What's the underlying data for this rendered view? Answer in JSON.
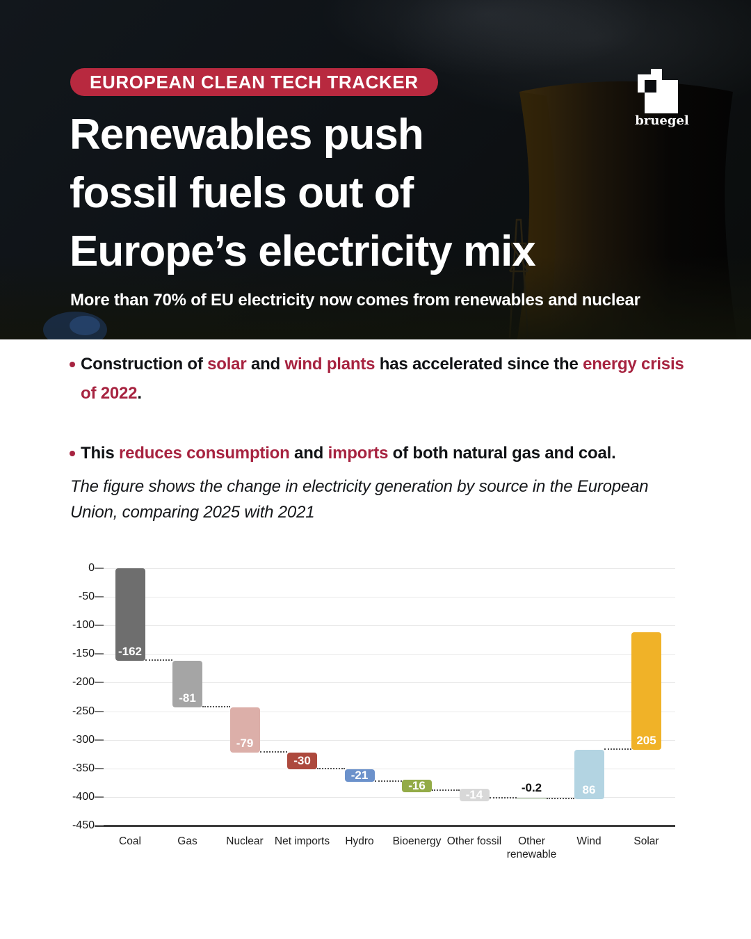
{
  "header": {
    "badge": "EUROPEAN CLEAN TECH TRACKER",
    "badge_color": "#b8293f",
    "title_lines": [
      "Renewables push",
      "fossil fuels out of",
      "Europe’s electricity mix"
    ],
    "subtitle": "More than 70% of EU electricity now comes from renewables and nuclear",
    "logo_text": "bruegel"
  },
  "colors": {
    "accent_red": "#a72340",
    "ink": "#111316"
  },
  "bullets": [
    {
      "segments": [
        {
          "t": "Construction of ",
          "c": "ink"
        },
        {
          "t": "solar",
          "c": "accent"
        },
        {
          "t": " and ",
          "c": "ink"
        },
        {
          "t": "wind plants",
          "c": "accent"
        },
        {
          "t": " has accelerated since the ",
          "c": "ink"
        },
        {
          "t": "energy crisis of 2022",
          "c": "accent"
        },
        {
          "t": ".",
          "c": "ink"
        }
      ]
    },
    {
      "segments": [
        {
          "t": "This ",
          "c": "ink"
        },
        {
          "t": "reduces consumption",
          "c": "accent"
        },
        {
          "t": " and ",
          "c": "ink"
        },
        {
          "t": "imports",
          "c": "accent"
        },
        {
          "t": " of both natural gas and coal.",
          "c": "ink"
        }
      ]
    }
  ],
  "figure_note": "The figure shows the change in electricity generation by source in the European Union, comparing 2025 with 2021",
  "chart_data": {
    "type": "bar",
    "subtype": "waterfall",
    "title": "Change in electricity generation by source, EU, 2025 vs 2021",
    "categories": [
      "Coal",
      "Gas",
      "Nuclear",
      "Net imports",
      "Hydro",
      "Bioenergy",
      "Other fossil",
      "Other renewable",
      "Wind",
      "Solar"
    ],
    "values": [
      -162,
      -81,
      -79,
      -30,
      -21,
      -16,
      -14,
      -0.2,
      86,
      205
    ],
    "labels": [
      "-162",
      "-81",
      "-79",
      "-30",
      "-21",
      "-16",
      "-14",
      "-0.2",
      "86",
      "205"
    ],
    "bar_colors": [
      "#6e6e6e",
      "#a5a5a5",
      "#dcafa9",
      "#ad493d",
      "#6b91cb",
      "#93ab47",
      "#d8d8d8",
      "#c9d6c4",
      "#b3d4e2",
      "#f0b228"
    ],
    "y_ticks": [
      0,
      -50,
      -100,
      -150,
      -200,
      -250,
      -300,
      -350,
      -400,
      -450
    ],
    "ylim": [
      -450,
      0
    ],
    "xlabel": "",
    "ylabel": "",
    "grid": true,
    "legend": "none",
    "connector_style": "dotted"
  }
}
